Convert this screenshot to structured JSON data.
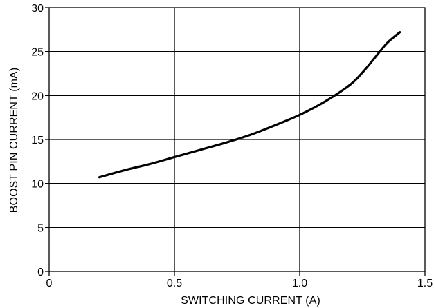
{
  "chart_data": {
    "type": "line",
    "xlabel": "SWITCHING CURRENT (A)",
    "ylabel": "BOOST PIN CURRENT (mA)",
    "xlim": [
      0,
      1.5
    ],
    "ylim": [
      0,
      30
    ],
    "x_ticks": [
      0,
      0.5,
      1.0,
      1.5
    ],
    "x_tick_labels": [
      "0",
      "0.5",
      "1.0",
      "1.5"
    ],
    "y_ticks": [
      0,
      5,
      10,
      15,
      20,
      25,
      30
    ],
    "y_tick_labels": [
      "0",
      "5",
      "10",
      "15",
      "20",
      "25",
      "30"
    ],
    "grid": true,
    "series": [
      {
        "color": "#000000",
        "x": [
          0.2,
          0.3,
          0.4,
          0.5,
          0.6,
          0.7,
          0.8,
          0.9,
          1.0,
          1.1,
          1.2,
          1.25,
          1.3,
          1.35,
          1.4
        ],
        "y": [
          10.7,
          11.5,
          12.2,
          13.0,
          13.8,
          14.6,
          15.5,
          16.6,
          17.8,
          19.3,
          21.2,
          22.6,
          24.3,
          26.0,
          27.2
        ]
      }
    ]
  }
}
